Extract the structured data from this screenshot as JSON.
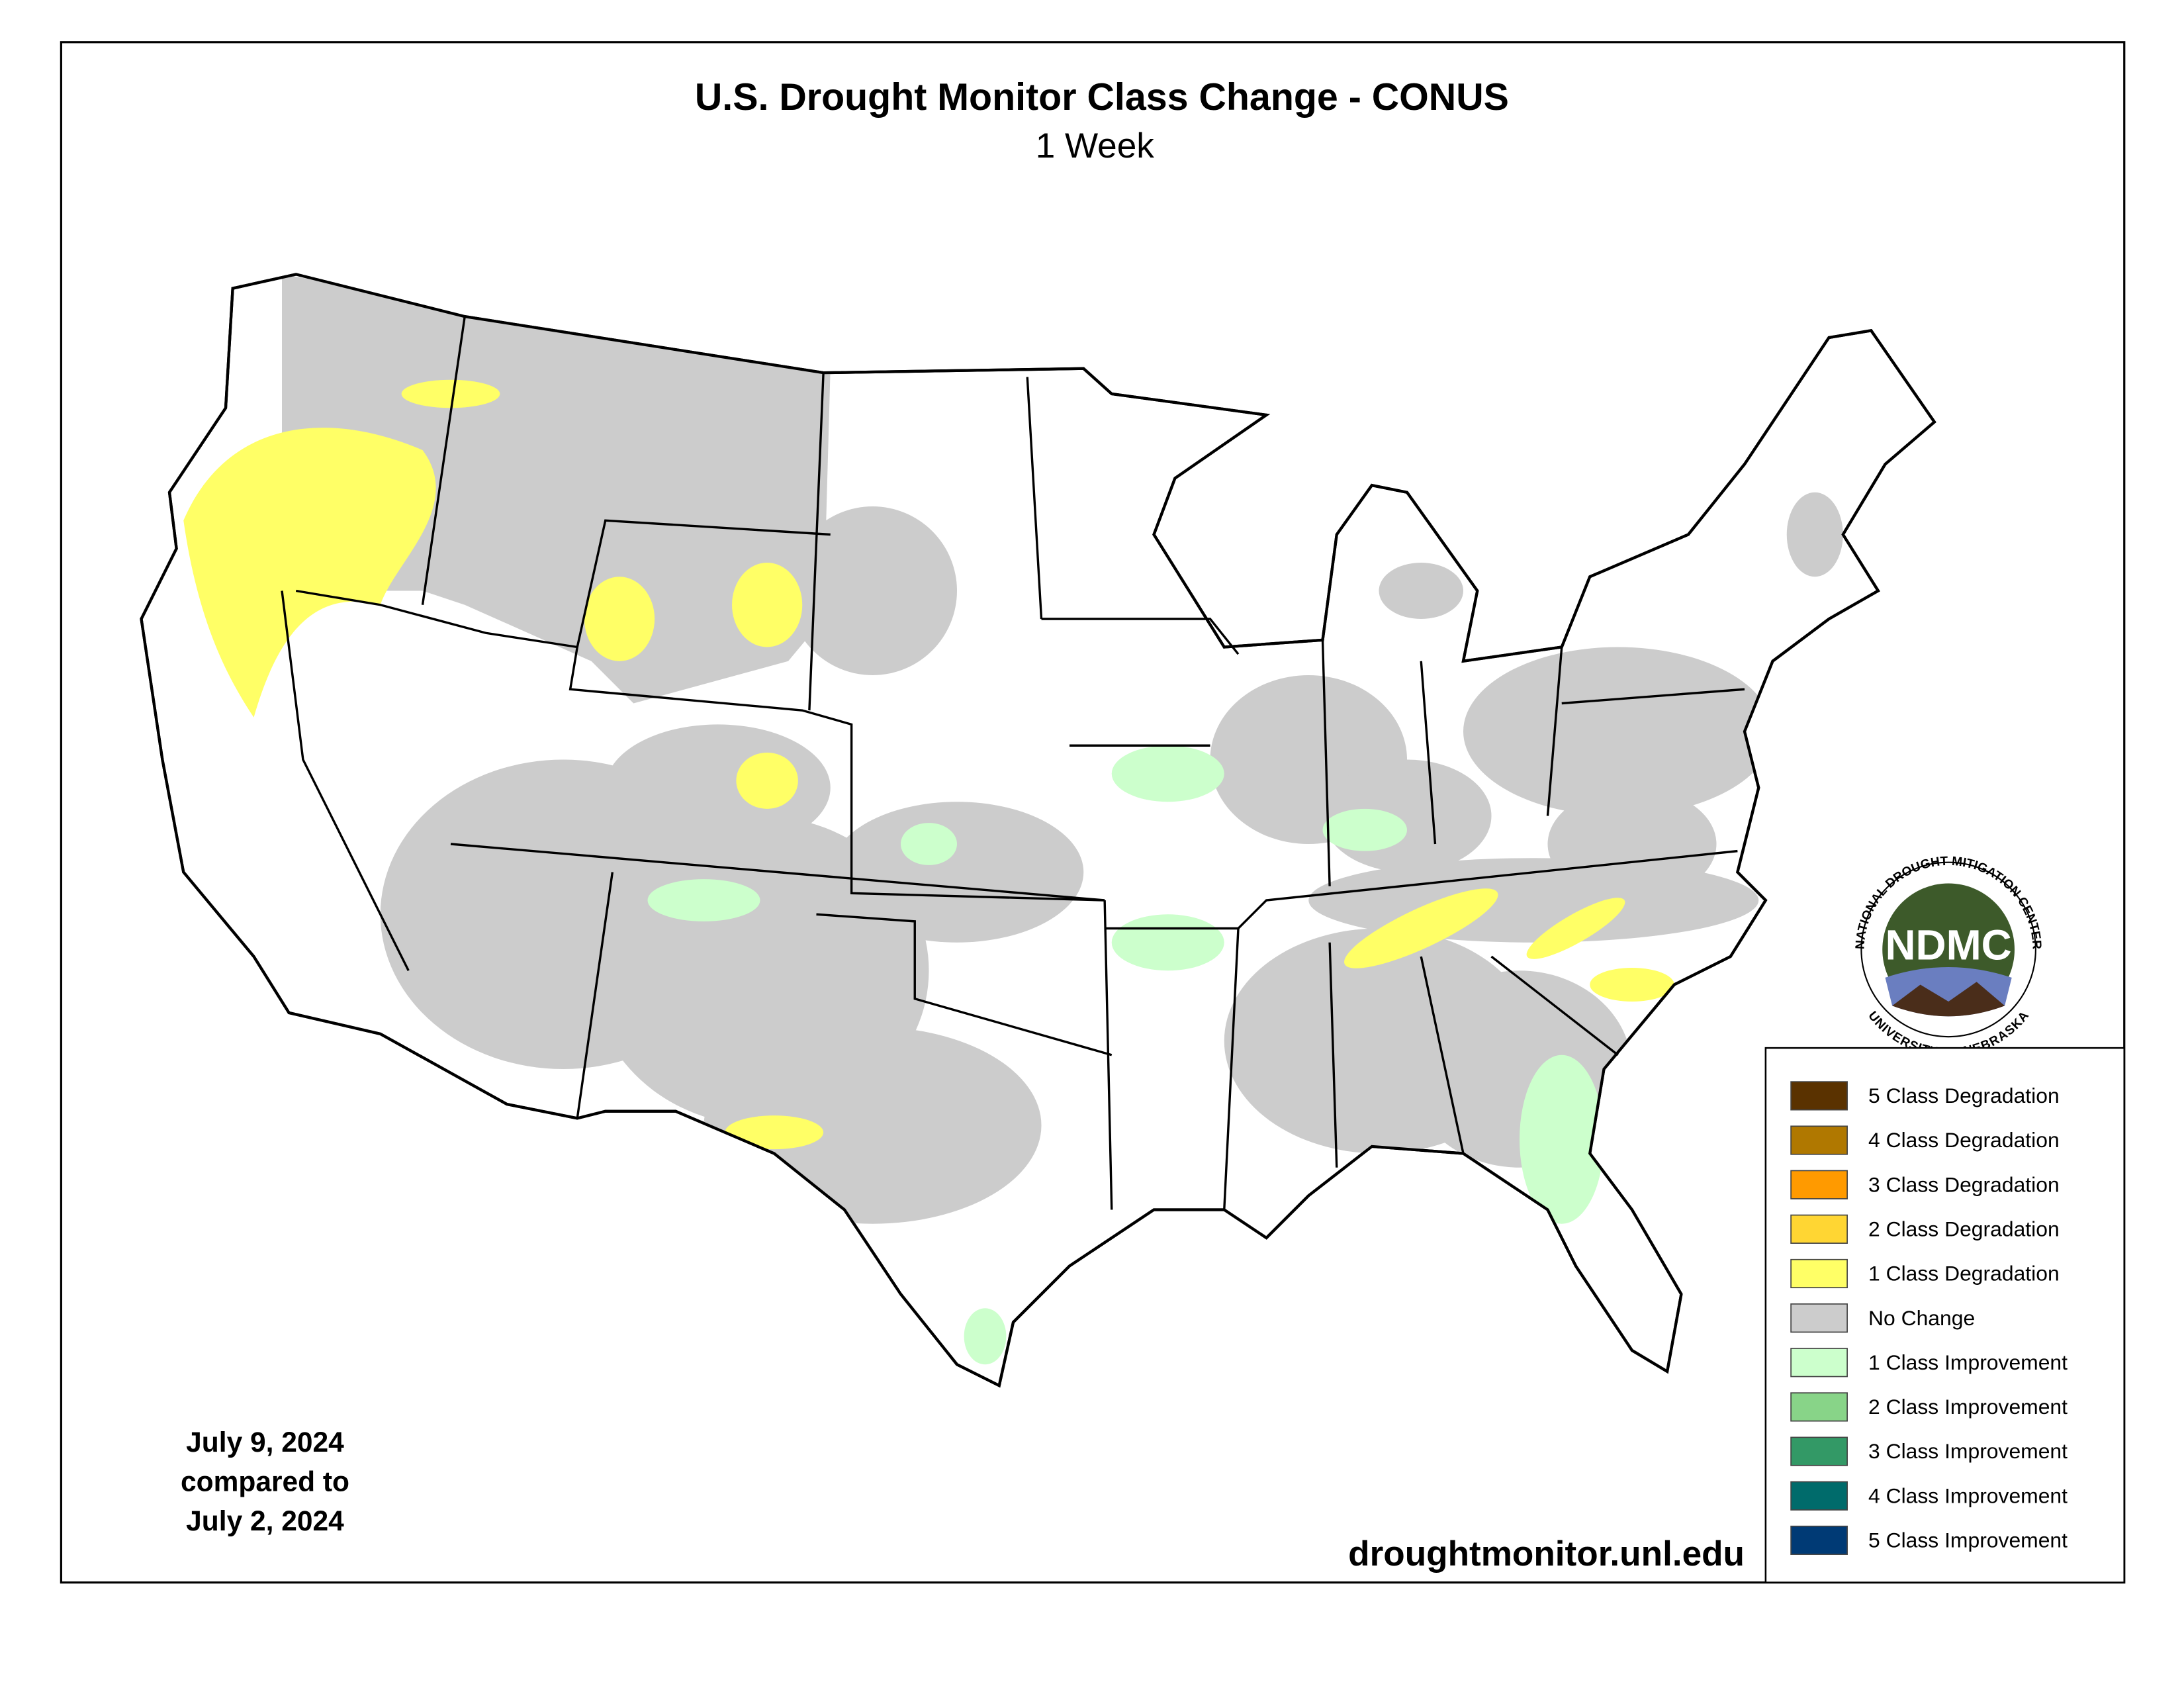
{
  "header": {
    "title": "U.S. Drought Monitor Class Change - CONUS",
    "subtitle": "1 Week"
  },
  "legend": {
    "items": [
      {
        "label": "5 Class Degradation",
        "color": "#5a3200"
      },
      {
        "label": "4 Class Degradation",
        "color": "#b07800"
      },
      {
        "label": "3 Class Degradation",
        "color": "#ff9a00"
      },
      {
        "label": "2 Class Degradation",
        "color": "#ffd633"
      },
      {
        "label": "1 Class Degradation",
        "color": "#ffff66"
      },
      {
        "label": "No Change",
        "color": "#cccccc"
      },
      {
        "label": "1 Class Improvement",
        "color": "#ccffcc"
      },
      {
        "label": "2 Class Improvement",
        "color": "#88d488"
      },
      {
        "label": "3 Class Improvement",
        "color": "#339966"
      },
      {
        "label": "4 Class Improvement",
        "color": "#006b6b"
      },
      {
        "label": "5 Class Improvement",
        "color": "#003a75"
      }
    ]
  },
  "dates": {
    "current": "July 9, 2024",
    "compared": "compared to",
    "previous": "July 2, 2024"
  },
  "logo": {
    "abbr": "NDMC",
    "top": "NATIONAL DROUGHT MITIGATION CENTER",
    "bottom": "UNIVERSITY OF NEBRASKA"
  },
  "source": "droughtmonitor.unl.edu"
}
